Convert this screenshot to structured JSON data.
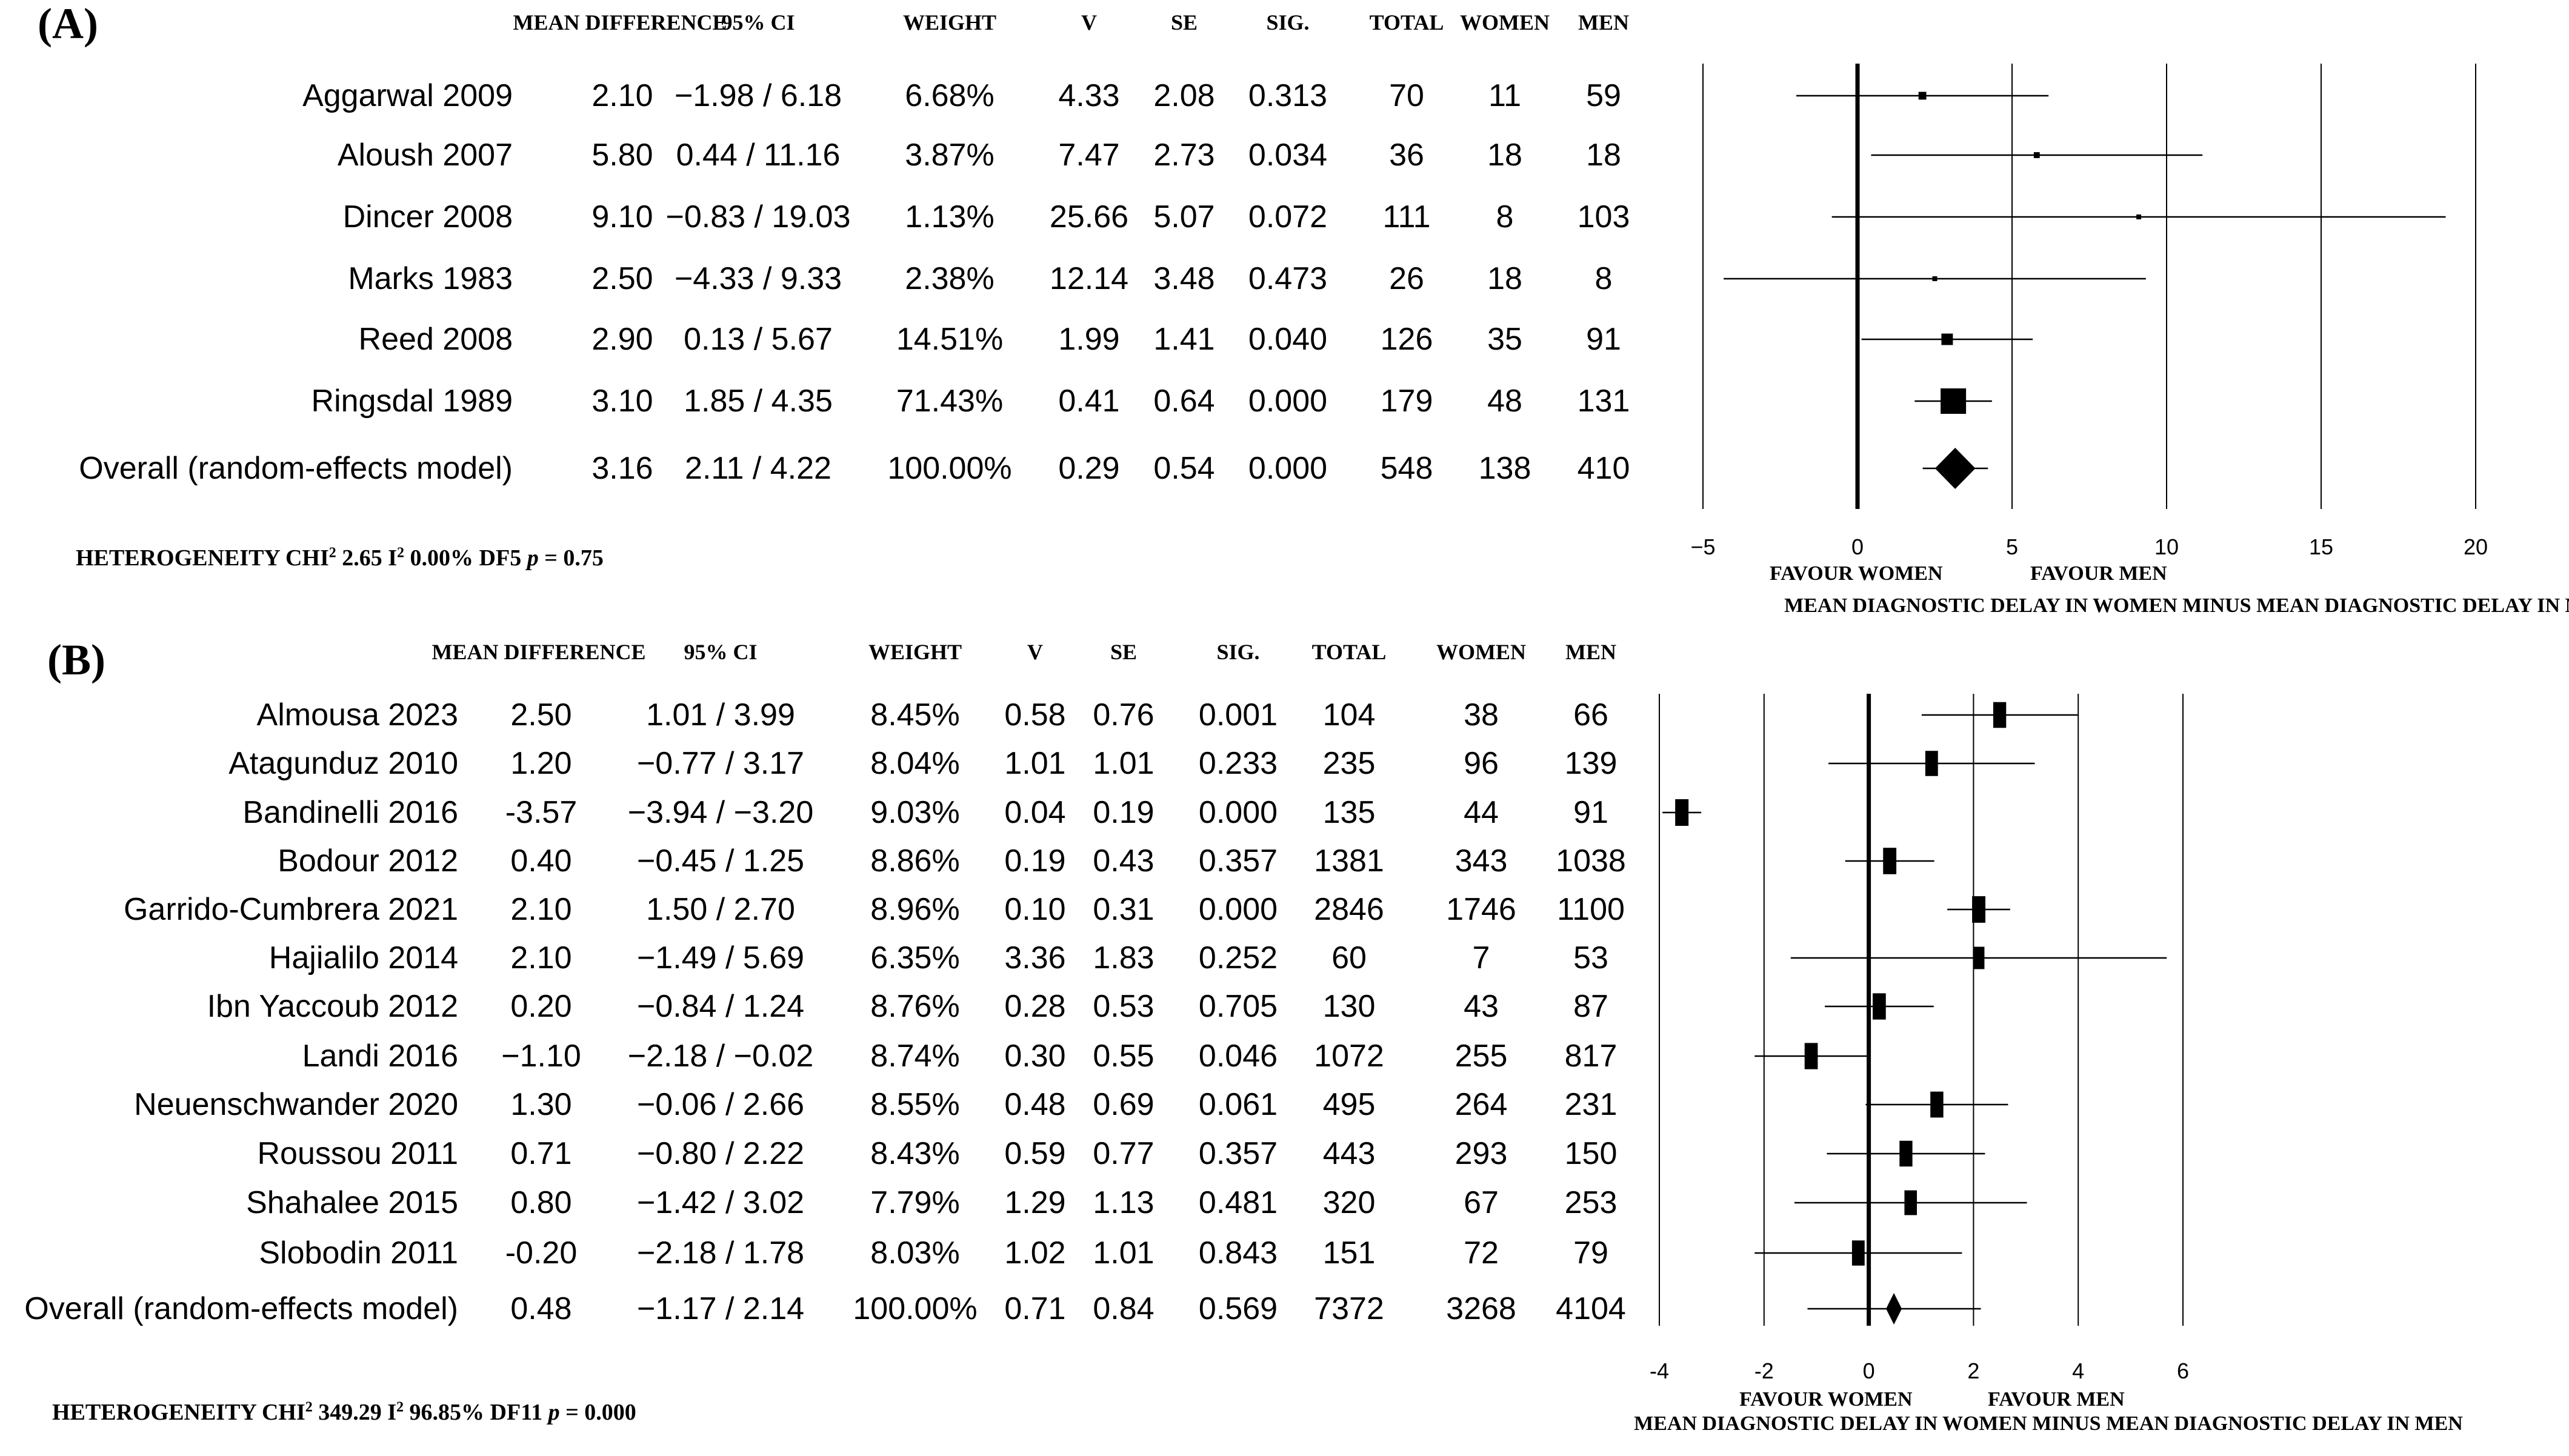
{
  "chart_data": [
    {
      "type": "forest",
      "panel": "(A)",
      "columns": [
        "MEAN DIFFERENCE",
        "95% CI",
        "WEIGHT",
        "V",
        "SE",
        "SIG.",
        "TOTAL",
        "WOMEN",
        "MEN"
      ],
      "studies": [
        {
          "name": "Aggarwal 2009",
          "md": "2.10",
          "ci": "−1.98 / 6.18",
          "weight": "6.68%",
          "v": "4.33",
          "se": "2.08",
          "sig": "0.313",
          "total": "70",
          "women": "11",
          "men": "59",
          "est": 2.1,
          "lo": -1.98,
          "hi": 6.18,
          "w": 6.68
        },
        {
          "name": "Aloush 2007",
          "md": "5.80",
          "ci": "0.44 / 11.16",
          "weight": "3.87%",
          "v": "7.47",
          "se": "2.73",
          "sig": "0.034",
          "total": "36",
          "women": "18",
          "men": "18",
          "est": 5.8,
          "lo": 0.44,
          "hi": 11.16,
          "w": 3.87
        },
        {
          "name": "Dincer 2008",
          "md": "9.10",
          "ci": "−0.83 / 19.03",
          "weight": "1.13%",
          "v": "25.66",
          "se": "5.07",
          "sig": "0.072",
          "total": "111",
          "women": "8",
          "men": "103",
          "est": 9.1,
          "lo": -0.83,
          "hi": 19.03,
          "w": 1.13
        },
        {
          "name": "Marks 1983",
          "md": "2.50",
          "ci": "−4.33 / 9.33",
          "weight": "2.38%",
          "v": "12.14",
          "se": "3.48",
          "sig": "0.473",
          "total": "26",
          "women": "18",
          "men": "8",
          "est": 2.5,
          "lo": -4.33,
          "hi": 9.33,
          "w": 2.38
        },
        {
          "name": "Reed 2008",
          "md": "2.90",
          "ci": "0.13 / 5.67",
          "weight": "14.51%",
          "v": "1.99",
          "se": "1.41",
          "sig": "0.040",
          "total": "126",
          "women": "35",
          "men": "91",
          "est": 2.9,
          "lo": 0.13,
          "hi": 5.67,
          "w": 14.51
        },
        {
          "name": "Ringsdal 1989",
          "md": "3.10",
          "ci": "1.85 / 4.35",
          "weight": "71.43%",
          "v": "0.41",
          "se": "0.64",
          "sig": "0.000",
          "total": "179",
          "women": "48",
          "men": "131",
          "est": 3.1,
          "lo": 1.85,
          "hi": 4.35,
          "w": 71.43
        }
      ],
      "overall": {
        "name": "Overall (random-effects model)",
        "md": "3.16",
        "ci": "2.11 / 4.22",
        "weight": "100.00%",
        "v": "0.29",
        "se": "0.54",
        "sig": "0.000",
        "total": "548",
        "women": "138",
        "men": "410",
        "est": 3.16,
        "lo": 2.11,
        "hi": 4.22
      },
      "heterogeneity": {
        "prefix": "HETEROGENEITY CHI",
        "sup1": "2",
        "chi": " 2.65 I",
        "sup2": "2",
        "rest": "  0.00% DF5 ",
        "p_label": "p",
        "p_value": " = 0.75"
      },
      "axis": {
        "min": -5,
        "max": 20,
        "ticks": [
          -5,
          0,
          5,
          10,
          15,
          20
        ],
        "tick_labels": [
          "−5",
          "0",
          "5",
          "10",
          "15",
          "20"
        ],
        "favour_left": "FAVOUR WOMEN",
        "favour_right": "FAVOUR MEN",
        "xlabel": "MEAN DIAGNOSTIC DELAY IN WOMEN  MINUS MEAN DIAGNOSTIC DELAY IN MEN"
      }
    },
    {
      "type": "forest",
      "panel": "(B)",
      "columns": [
        "MEAN DIFFERENCE",
        "95% CI",
        "WEIGHT",
        "V",
        "SE",
        "SIG.",
        "TOTAL",
        "WOMEN",
        "MEN"
      ],
      "studies": [
        {
          "name": "Almousa 2023",
          "md": "2.50",
          "ci": "1.01 / 3.99",
          "weight": "8.45%",
          "v": "0.58",
          "se": "0.76",
          "sig": "0.001",
          "total": "104",
          "women": "38",
          "men": "66",
          "est": 2.5,
          "lo": 1.01,
          "hi": 3.99,
          "w": 8.45
        },
        {
          "name": "Atagunduz 2010",
          "md": "1.20",
          "ci": "−0.77 / 3.17",
          "weight": "8.04%",
          "v": "1.01",
          "se": "1.01",
          "sig": "0.233",
          "total": "235",
          "women": "96",
          "men": "139",
          "est": 1.2,
          "lo": -0.77,
          "hi": 3.17,
          "w": 8.04
        },
        {
          "name": "Bandinelli 2016",
          "md": "-3.57",
          "ci": "−3.94 / −3.20",
          "weight": "9.03%",
          "v": "0.04",
          "se": "0.19",
          "sig": "0.000",
          "total": "135",
          "women": "44",
          "men": "91",
          "est": -3.57,
          "lo": -3.94,
          "hi": -3.2,
          "w": 9.03
        },
        {
          "name": "Bodour 2012",
          "md": "0.40",
          "ci": "−0.45 / 1.25",
          "weight": "8.86%",
          "v": "0.19",
          "se": "0.43",
          "sig": "0.357",
          "total": "1381",
          "women": "343",
          "men": "1038",
          "est": 0.4,
          "lo": -0.45,
          "hi": 1.25,
          "w": 8.86
        },
        {
          "name": "Garrido-Cumbrera 2021",
          "md": "2.10",
          "ci": "1.50 / 2.70",
          "weight": "8.96%",
          "v": "0.10",
          "se": "0.31",
          "sig": "0.000",
          "total": "2846",
          "women": "1746",
          "men": "1100",
          "est": 2.1,
          "lo": 1.5,
          "hi": 2.7,
          "w": 8.96
        },
        {
          "name": "Hajialilo 2014",
          "md": "2.10",
          "ci": "−1.49 / 5.69",
          "weight": "6.35%",
          "v": "3.36",
          "se": "1.83",
          "sig": "0.252",
          "total": "60",
          "women": "7",
          "men": "53",
          "est": 2.1,
          "lo": -1.49,
          "hi": 5.69,
          "w": 6.35
        },
        {
          "name": "Ibn Yaccoub 2012",
          "md": "0.20",
          "ci": "−0.84 / 1.24",
          "weight": "8.76%",
          "v": "0.28",
          "se": "0.53",
          "sig": "0.705",
          "total": "130",
          "women": "43",
          "men": "87",
          "est": 0.2,
          "lo": -0.84,
          "hi": 1.24,
          "w": 8.76
        },
        {
          "name": "Landi  2016",
          "md": "−1.10",
          "ci": "−2.18 / −0.02",
          "weight": "8.74%",
          "v": "0.30",
          "se": "0.55",
          "sig": "0.046",
          "total": "1072",
          "women": "255",
          "men": "817",
          "est": -1.1,
          "lo": -2.18,
          "hi": -0.02,
          "w": 8.74
        },
        {
          "name": "Neuenschwander 2020",
          "md": "1.30",
          "ci": "−0.06 / 2.66",
          "weight": "8.55%",
          "v": "0.48",
          "se": "0.69",
          "sig": "0.061",
          "total": "495",
          "women": "264",
          "men": "231",
          "est": 1.3,
          "lo": -0.06,
          "hi": 2.66,
          "w": 8.55
        },
        {
          "name": "Roussou 2011",
          "md": "0.71",
          "ci": "−0.80 / 2.22",
          "weight": "8.43%",
          "v": "0.59",
          "se": "0.77",
          "sig": "0.357",
          "total": "443",
          "women": "293",
          "men": "150",
          "est": 0.71,
          "lo": -0.8,
          "hi": 2.22,
          "w": 8.43
        },
        {
          "name": "Shahalee 2015",
          "md": "0.80",
          "ci": "−1.42 / 3.02",
          "weight": "7.79%",
          "v": "1.29",
          "se": "1.13",
          "sig": "0.481",
          "total": "320",
          "women": "67",
          "men": "253",
          "est": 0.8,
          "lo": -1.42,
          "hi": 3.02,
          "w": 7.79
        },
        {
          "name": "Slobodin 2011",
          "md": "-0.20",
          "ci": "−2.18 / 1.78",
          "weight": "8.03%",
          "v": "1.02",
          "se": "1.01",
          "sig": "0.843",
          "total": "151",
          "women": "72",
          "men": "79",
          "est": -0.2,
          "lo": -2.18,
          "hi": 1.78,
          "w": 8.03
        }
      ],
      "overall": {
        "name": "Overall (random-effects model)",
        "md": "0.48",
        "ci": "−1.17 / 2.14",
        "weight": "100.00%",
        "v": "0.71",
        "se": "0.84",
        "sig": "0.569",
        "total": "7372",
        "women": "3268",
        "men": "4104",
        "est": 0.48,
        "lo": -1.17,
        "hi": 2.14
      },
      "heterogeneity": {
        "prefix": "HETEROGENEITY CHI",
        "sup1": "2",
        "chi": " 349.29 I",
        "sup2": "2",
        "rest": "  96.85% DF11 ",
        "p_label": "p",
        "p_value": " = 0.000"
      },
      "axis": {
        "min": -4,
        "max": 6,
        "ticks": [
          -4,
          -2,
          0,
          2,
          4,
          6
        ],
        "tick_labels": [
          "-4",
          "-2",
          "0",
          "2",
          "4",
          "6"
        ],
        "favour_left": "FAVOUR WOMEN",
        "favour_right": "FAVOUR MEN",
        "xlabel": "MEAN DIAGNOSTIC DELAY IN WOMEN  MINUS MEAN DIAGNOSTIC DELAY IN MEN"
      }
    }
  ]
}
